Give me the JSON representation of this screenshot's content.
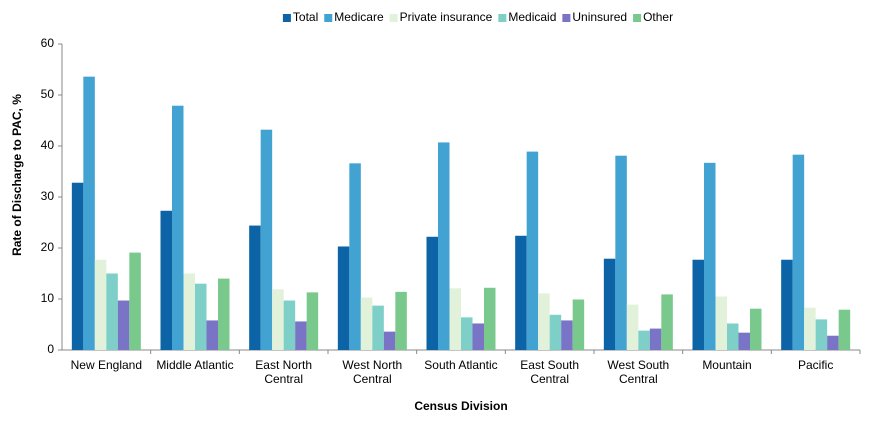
{
  "chart_data": {
    "type": "bar",
    "xlabel": "Census Division",
    "ylabel": "Rate of Discharge to PAC, %",
    "categories": [
      "New England",
      "Middle Atlantic",
      "East North Central",
      "West North Central",
      "South Atlantic",
      "East South Central",
      "West South Central",
      "Mountain",
      "Pacific"
    ],
    "series": [
      {
        "name": "Total",
        "color": "#0c64a6",
        "values": [
          32.8,
          27.3,
          24.4,
          20.3,
          22.2,
          22.4,
          17.9,
          17.7,
          17.7
        ]
      },
      {
        "name": "Medicare",
        "color": "#42a3d2",
        "values": [
          53.6,
          47.9,
          43.2,
          36.6,
          40.7,
          38.9,
          38.1,
          36.7,
          38.3
        ]
      },
      {
        "name": "Private insurance",
        "color": "#e2f2da",
        "values": [
          17.7,
          15.0,
          11.9,
          10.3,
          12.1,
          11.1,
          8.9,
          10.5,
          8.3
        ]
      },
      {
        "name": "Medicaid",
        "color": "#7dcfc8",
        "values": [
          15.0,
          13.0,
          9.7,
          8.7,
          6.4,
          6.9,
          3.8,
          5.2,
          6.0
        ]
      },
      {
        "name": "Uninsured",
        "color": "#7a74c6",
        "values": [
          9.7,
          5.8,
          5.6,
          3.6,
          5.2,
          5.8,
          4.2,
          3.4,
          2.8
        ]
      },
      {
        "name": "Other",
        "color": "#79c98c",
        "values": [
          19.1,
          14.0,
          11.3,
          11.4,
          12.2,
          9.9,
          10.9,
          8.1,
          7.9
        ]
      }
    ],
    "ylim": [
      0,
      60
    ],
    "yticks": [
      0,
      10,
      20,
      30,
      40,
      50,
      60
    ],
    "grid": false,
    "legend": "top"
  }
}
